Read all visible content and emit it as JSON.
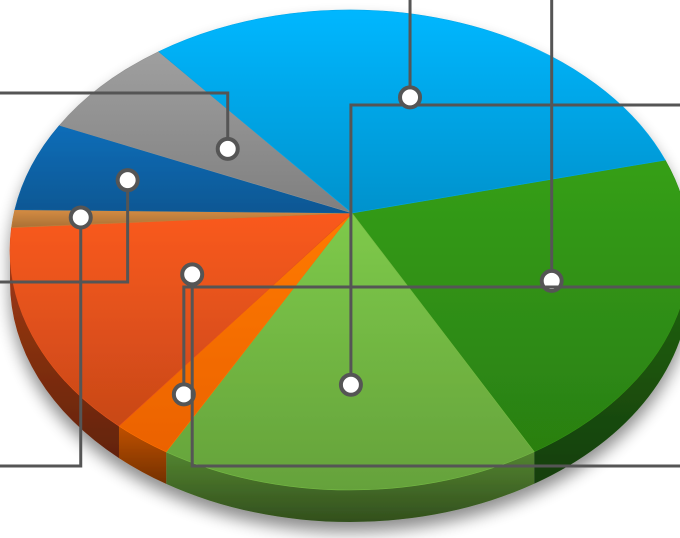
{
  "chart_data": {
    "type": "pie",
    "style": "3d",
    "title": "",
    "data_labels": "none",
    "legend": "none",
    "slices": [
      {
        "value": 22.0,
        "color": "#2e8a12"
      },
      {
        "value": 18.2,
        "color": "#6eb040"
      },
      {
        "value": 2.8,
        "color": "#ff6a00"
      },
      {
        "value": 14.6,
        "color": "#d94e1a"
      },
      {
        "value": 1.2,
        "color": "#b97a3a"
      },
      {
        "value": 6.0,
        "color": "#0a5fa0"
      },
      {
        "value": 6.8,
        "color": "#8a8a8a"
      },
      {
        "value": 28.4,
        "color": "#009fde"
      }
    ],
    "leader_line_color": "#555555"
  }
}
